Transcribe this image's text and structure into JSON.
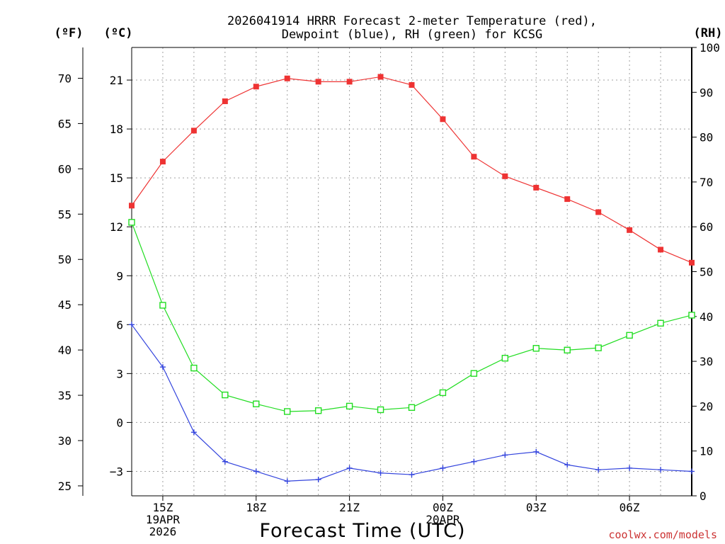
{
  "chart_data": {
    "type": "line",
    "title_line1": "2026041914 HRRR Forecast 2-meter Temperature (red),",
    "title_line2": "Dewpoint (blue), RH (green) for KCSG",
    "unit_f": "(ºF)",
    "unit_c": "(ºC)",
    "unit_rh": "(RH)",
    "xlabel": "Forecast Time (UTC)",
    "credit": "coolwx.com/models",
    "x_hours": [
      14,
      15,
      16,
      17,
      18,
      19,
      20,
      21,
      22,
      23,
      24,
      25,
      26,
      27,
      28,
      29,
      30,
      31,
      32
    ],
    "x_range": [
      14,
      32
    ],
    "y_celsius_range": [
      -4.5,
      23.0
    ],
    "y_rh_range": [
      0,
      100
    ],
    "x_ticks": [
      {
        "hour": 15,
        "lines": [
          "15Z",
          "19APR",
          "2026"
        ]
      },
      {
        "hour": 18,
        "lines": [
          "18Z"
        ]
      },
      {
        "hour": 21,
        "lines": [
          "21Z"
        ]
      },
      {
        "hour": 24,
        "lines": [
          "00Z",
          "20APR"
        ]
      },
      {
        "hour": 27,
        "lines": [
          "03Z"
        ]
      },
      {
        "hour": 30,
        "lines": [
          "06Z"
        ]
      }
    ],
    "celsius_ticks": [
      "-3",
      "0",
      "3",
      "6",
      "9",
      "12",
      "15",
      "18",
      "21"
    ],
    "fahrenheit_ticks": [
      "25",
      "30",
      "35",
      "40",
      "45",
      "50",
      "55",
      "60",
      "65",
      "70"
    ],
    "rh_ticks": [
      "0",
      "10",
      "20",
      "30",
      "40",
      "50",
      "60",
      "70",
      "80",
      "90",
      "100"
    ],
    "series": [
      {
        "name": "Temperature",
        "unit": "C",
        "color": "#ee3333",
        "marker": "filled-square",
        "values": [
          13.3,
          16.0,
          17.9,
          19.7,
          20.6,
          21.1,
          20.9,
          20.9,
          21.2,
          20.7,
          18.6,
          16.3,
          15.1,
          14.4,
          13.7,
          12.9,
          11.8,
          10.6,
          9.8
        ]
      },
      {
        "name": "Dewpoint",
        "unit": "C",
        "color": "#3344dd",
        "marker": "plus",
        "values": [
          6.0,
          3.4,
          -0.6,
          -2.4,
          -3.0,
          -3.6,
          -3.5,
          -2.8,
          -3.1,
          -3.2,
          -2.8,
          -2.4,
          -2.0,
          -1.8,
          -2.6,
          -2.9,
          -2.8,
          -2.9,
          -3.0
        ]
      },
      {
        "name": "RH",
        "unit": "%",
        "color": "#22dd22",
        "marker": "open-square",
        "values": [
          61.0,
          42.5,
          28.5,
          22.5,
          20.5,
          18.8,
          19.0,
          20.0,
          19.2,
          19.7,
          23.0,
          27.3,
          30.7,
          32.9,
          32.5,
          33.0,
          35.8,
          38.5,
          40.3
        ]
      }
    ]
  }
}
